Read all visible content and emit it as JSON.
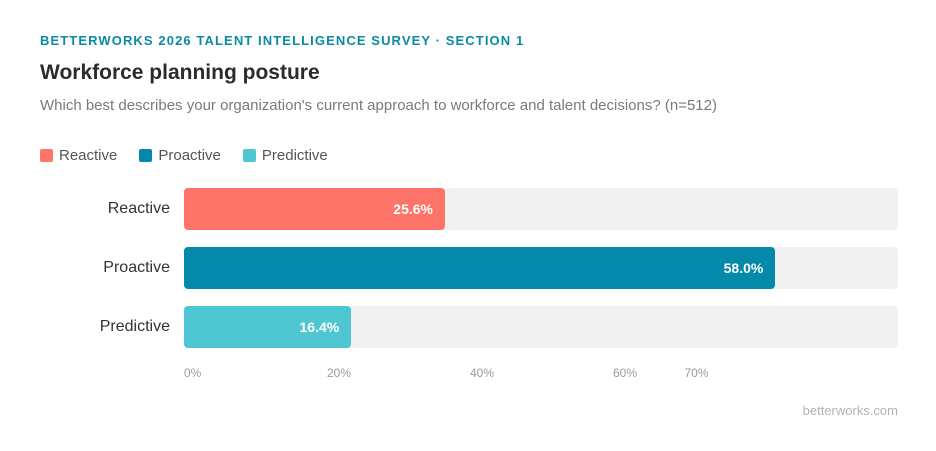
{
  "header": {
    "eyebrow": "BETTERWORKS 2026 TALENT INTELLIGENCE SURVEY · SECTION 1",
    "title": "Workforce planning posture",
    "subtitle": "Which best describes your organization's current approach to workforce and talent decisions? (n=512)"
  },
  "footer": {
    "source": "betterworks.com"
  },
  "chart_data": {
    "type": "bar",
    "orientation": "horizontal",
    "title": "Workforce planning posture",
    "categories": [
      "Reactive",
      "Proactive",
      "Predictive"
    ],
    "values": [
      25.6,
      58.0,
      16.4
    ],
    "value_labels": [
      "25.6%",
      "58.0%",
      "16.4%"
    ],
    "colors": [
      "#ff7468",
      "#0589ab",
      "#4fc7d2"
    ],
    "legend": {
      "placement": "top-left",
      "entries": [
        {
          "label": "Reactive",
          "color": "#ff7468"
        },
        {
          "label": "Proactive",
          "color": "#0589ab"
        },
        {
          "label": "Predictive",
          "color": "#4fc7d2"
        }
      ]
    },
    "xlim": [
      0,
      80
    ],
    "x_ticks": [
      0,
      20,
      40,
      60,
      70
    ],
    "x_tick_labels": [
      "0%",
      "20%",
      "40%",
      "60%",
      "70%"
    ],
    "grid": false
  }
}
